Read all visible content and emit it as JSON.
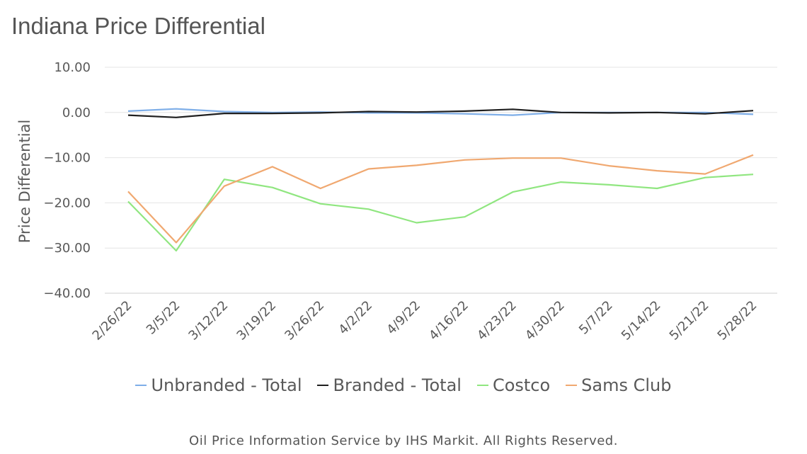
{
  "title": "Indiana Price Differential",
  "footer": "Oil Price Information Service by IHS Markit. All Rights Reserved.",
  "chart_data": {
    "type": "line",
    "title": "Indiana Price Differential",
    "xlabel": "",
    "ylabel": "Price Differential",
    "ylim": [
      -40,
      10
    ],
    "yticks": [
      "10.00",
      "0.00",
      "−10.00",
      "−20.00",
      "−30.00",
      "−40.00"
    ],
    "ytick_values": [
      10,
      0,
      -10,
      -20,
      -30,
      -40
    ],
    "categories": [
      "2/26/22",
      "3/5/22",
      "3/12/22",
      "3/19/22",
      "3/26/22",
      "4/2/22",
      "4/9/22",
      "4/16/22",
      "4/23/22",
      "4/30/22",
      "5/7/22",
      "5/14/22",
      "5/21/22",
      "5/28/22"
    ],
    "grid": true,
    "legend_position": "bottom",
    "series": [
      {
        "name": "Unbranded - Total",
        "color": "#7eaee8",
        "values": [
          0.3,
          0.8,
          0.2,
          0.0,
          0.1,
          -0.1,
          -0.1,
          -0.3,
          -0.6,
          0.0,
          0.0,
          0.0,
          0.0,
          -0.4
        ]
      },
      {
        "name": "Branded - Total",
        "color": "#1f1f1f",
        "values": [
          -0.6,
          -1.1,
          -0.2,
          -0.2,
          -0.1,
          0.2,
          0.1,
          0.3,
          0.7,
          0.0,
          -0.1,
          0.0,
          -0.3,
          0.4
        ]
      },
      {
        "name": "Costco",
        "color": "#90e680",
        "values": [
          -19.7,
          -30.6,
          -14.8,
          -16.6,
          -20.2,
          -21.4,
          -24.4,
          -23.1,
          -17.6,
          -15.4,
          -16.0,
          -16.8,
          -14.4,
          -13.7
        ]
      },
      {
        "name": "Sams Club",
        "color": "#f0a870",
        "values": [
          -17.5,
          -28.8,
          -16.3,
          -12.0,
          -16.8,
          -12.5,
          -11.7,
          -10.5,
          -10.1,
          -10.1,
          -11.8,
          -12.9,
          -13.6,
          -9.4
        ]
      }
    ]
  }
}
